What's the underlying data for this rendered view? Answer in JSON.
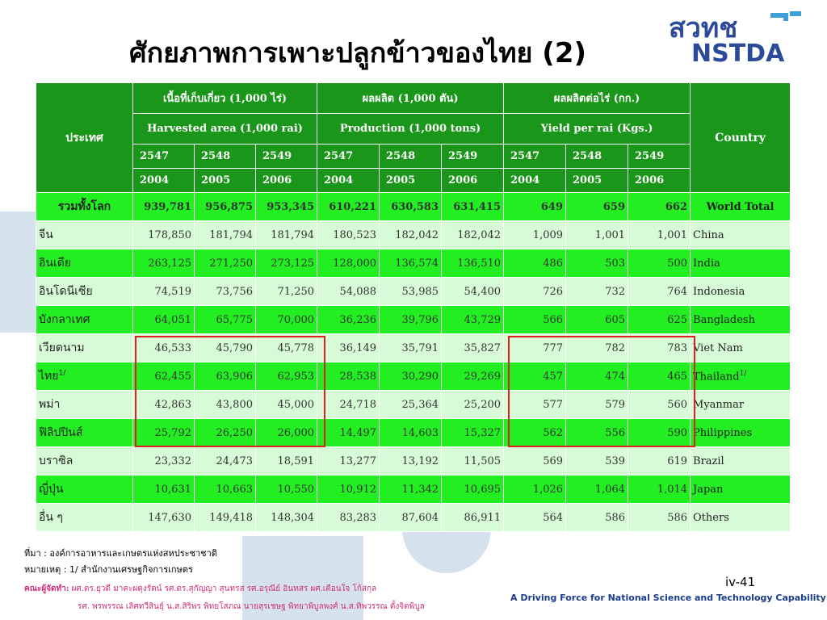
{
  "title": "ศักยภาพการเพาะปลูกข้าวของไทย (2)",
  "logo": {
    "top_text": "สวทช",
    "bottom_text": "NSTDA",
    "color": "#2b4b9a",
    "accent": "#3fa0d8"
  },
  "table": {
    "header": {
      "country_th": "ประเทศ",
      "country_en": "Country",
      "groups": [
        {
          "th": "เนื้อที่เก็บเกี่ยว (1,000 ไร่)",
          "en": "Harvested area (1,000 rai)"
        },
        {
          "th": "ผลผลิต (1,000 ตัน)",
          "en": "Production (1,000 tons)"
        },
        {
          "th": "ผลผลิตต่อไร่ (กก.)",
          "en": "Yield per rai (Kgs.)"
        }
      ],
      "years_th": [
        "2547",
        "2548",
        "2549"
      ],
      "years_en": [
        "2004",
        "2005",
        "2006"
      ]
    },
    "rows": [
      {
        "th": "รวมทั้งโลก",
        "en": "World Total",
        "area": [
          "939,781",
          "956,875",
          "953,345"
        ],
        "prod": [
          "610,221",
          "630,583",
          "631,415"
        ],
        "yield": [
          "649",
          "659",
          "662"
        ]
      },
      {
        "th": "จีน",
        "en": "China",
        "area": [
          "178,850",
          "181,794",
          "181,794"
        ],
        "prod": [
          "180,523",
          "182,042",
          "182,042"
        ],
        "yield": [
          "1,009",
          "1,001",
          "1,001"
        ]
      },
      {
        "th": "อินเดีย",
        "en": "India",
        "area": [
          "263,125",
          "271,250",
          "273,125"
        ],
        "prod": [
          "128,000",
          "136,574",
          "136,510"
        ],
        "yield": [
          "486",
          "503",
          "500"
        ]
      },
      {
        "th": "อินโดนีเซีย",
        "en": "Indonesia",
        "area": [
          "74,519",
          "73,756",
          "71,250"
        ],
        "prod": [
          "54,088",
          "53,985",
          "54,400"
        ],
        "yield": [
          "726",
          "732",
          "764"
        ]
      },
      {
        "th": "บังกลาเทศ",
        "en": "Bangladesh",
        "area": [
          "64,051",
          "65,775",
          "70,000"
        ],
        "prod": [
          "36,236",
          "39,796",
          "43,729"
        ],
        "yield": [
          "566",
          "605",
          "625"
        ]
      },
      {
        "th": "เวียดนาม",
        "en": "Viet Nam",
        "area": [
          "46,533",
          "45,790",
          "45,778"
        ],
        "prod": [
          "36,149",
          "35,791",
          "35,827"
        ],
        "yield": [
          "777",
          "782",
          "783"
        ]
      },
      {
        "th": "ไทย",
        "th_sup": "1/",
        "en": "Thailand",
        "en_sup": "1/",
        "area": [
          "62,455",
          "63,906",
          "62,953"
        ],
        "prod": [
          "28,538",
          "30,290",
          "29,269"
        ],
        "yield": [
          "457",
          "474",
          "465"
        ]
      },
      {
        "th": "พม่า",
        "en": "Myanmar",
        "area": [
          "42,863",
          "43,800",
          "45,000"
        ],
        "prod": [
          "24,718",
          "25,364",
          "25,200"
        ],
        "yield": [
          "577",
          "579",
          "560"
        ]
      },
      {
        "th": "ฟิลิปปินส์",
        "en": "Philippines",
        "area": [
          "25,792",
          "26,250",
          "26,000"
        ],
        "prod": [
          "14,497",
          "14,603",
          "15,327"
        ],
        "yield": [
          "562",
          "556",
          "590"
        ]
      },
      {
        "th": "บราซิล",
        "en": "Brazil",
        "area": [
          "23,332",
          "24,473",
          "18,591"
        ],
        "prod": [
          "13,277",
          "13,192",
          "11,505"
        ],
        "yield": [
          "569",
          "539",
          "619"
        ]
      },
      {
        "th": "ญี่ปุ่น",
        "en": "Japan",
        "area": [
          "10,631",
          "10,663",
          "10,550"
        ],
        "prod": [
          "10,912",
          "11,342",
          "10,695"
        ],
        "yield": [
          "1,026",
          "1,064",
          "1,014"
        ]
      },
      {
        "th": "อื่น ๆ",
        "en": "Others",
        "area": [
          "147,630",
          "149,418",
          "148,304"
        ],
        "prod": [
          "83,283",
          "87,604",
          "86,911"
        ],
        "yield": [
          "564",
          "586",
          "586"
        ]
      }
    ]
  },
  "notes": {
    "source": "ที่มา : องค์การอาหารและเกษตรแห่งสหประชาชาติ",
    "remark": "หมายเหตุ : 1/ สำนักงานเศรษฐกิจการเกษตร"
  },
  "credits": {
    "label": "คณะผู้จัดทำ:",
    "line1": "ผศ.ดร.ยุวดี มาคะผดุงรัตน์   รศ.ดร.สุกัญญา   สุนทรส   รศ.อรุณีย์ อินทสร   ผศ.เตือนใจ โก้สกุล",
    "line2": "รศ. พรพรรณ  เลิศทวีสินธุ์  น.ส.สิริพร  พิทยโสภณ  นายสุรเชษฐ พิทยาพิบูลพงศ์  น.ส.ทิพวรรณ  ตั้งจิตพิบูล"
  },
  "page_number": "iv-41",
  "tagline": "A Driving Force for National Science and Technology Capability",
  "colors": {
    "header_green": "#1a961a",
    "bright_green": "#22ee22",
    "light_green": "#d6fbd6",
    "highlight_red": "#e02020"
  }
}
